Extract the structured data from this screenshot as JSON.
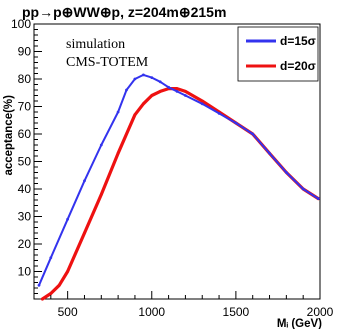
{
  "chart_data": {
    "type": "line",
    "title": "pp→p⊕WW⊕p, z=204m⊕215m",
    "xlabel": "Mᵢ (GeV)",
    "ylabel": "acceptance(%)",
    "xlim": [
      300,
      2000
    ],
    "ylim": [
      0,
      100
    ],
    "x_ticks": [
      "500",
      "1000",
      "1500",
      "2000"
    ],
    "y_ticks": [
      "10",
      "20",
      "30",
      "40",
      "50",
      "60",
      "70",
      "80",
      "90",
      "100"
    ],
    "annotations": [
      "simulation",
      "CMS-TOTEM"
    ],
    "legend_position": "top-right",
    "grid": false,
    "series": [
      {
        "name": "d=15σ",
        "color": "#3333ee",
        "x": [
          330,
          400,
          500,
          600,
          700,
          800,
          850,
          900,
          950,
          1000,
          1050,
          1100,
          1150,
          1200,
          1300,
          1400,
          1500,
          1600,
          1700,
          1800,
          1900,
          1990
        ],
        "y": [
          5,
          15,
          29,
          43,
          56,
          68,
          76,
          80,
          81.5,
          80.5,
          79,
          77,
          75.5,
          74,
          71,
          67.5,
          64,
          60,
          53,
          46,
          40,
          36.5
        ]
      },
      {
        "name": "d=20σ",
        "color": "#ee1111",
        "x": [
          350,
          400,
          450,
          500,
          600,
          700,
          800,
          900,
          950,
          1000,
          1050,
          1100,
          1150,
          1200,
          1300,
          1400,
          1500,
          1600,
          1700,
          1800,
          1900,
          1990
        ],
        "y": [
          0,
          2,
          5,
          10,
          24,
          38,
          53,
          67,
          71,
          74,
          75.5,
          76.5,
          76.5,
          75.5,
          72,
          68,
          64,
          60,
          53,
          46,
          40,
          36.5
        ]
      }
    ]
  }
}
